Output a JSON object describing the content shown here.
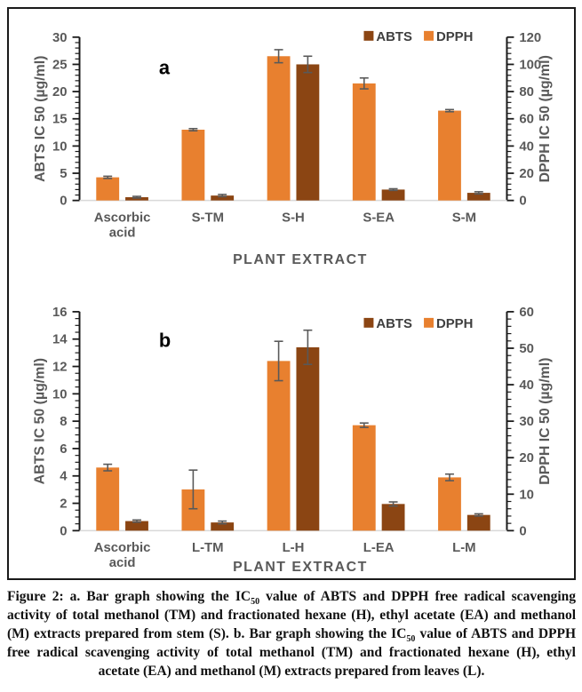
{
  "figure": {
    "caption_segments": [
      "Figure 2: a. Bar graph showing the IC",
      "50",
      " value of ABTS and DPPH free radical scavenging activity of total methanol (TM) and fractionated hexane (H), ethyl acetate (EA) and methanol (M) extracts prepared from stem (S). b. Bar graph showing the IC",
      "50",
      " value of ABTS and DPPH free radical scavenging activity of total methanol (TM) and fractionated hexane (H), ethyl acetate (EA) and methanol (M) extracts prepared from leaves (L)."
    ]
  },
  "colors": {
    "abts": "#8B4513",
    "dpph": "#E8802F",
    "axis_text": "#595959",
    "legend_text": "#3F3F3F",
    "axis_line": "#1a1a1a",
    "baseline": "#D9D9D9",
    "error_bar": "#595959",
    "panel_letter": "#000000"
  },
  "chart_data": [
    {
      "id": "a",
      "type": "bar",
      "panel_label": "a",
      "categories": [
        "Ascorbic\nacid",
        "S-TM",
        "S-H",
        "S-EA",
        "S-M"
      ],
      "xlabel": "PLANT EXTRACT",
      "axes": {
        "left": {
          "label": "ABTS IC 50 (µg/ml)",
          "min": 0,
          "max": 30,
          "major": 5,
          "minor": 1,
          "ticks": [
            0,
            5,
            10,
            15,
            20,
            25,
            30
          ]
        },
        "right": {
          "label": "DPPH IC 50 (µg/ml)",
          "min": 0,
          "max": 120,
          "major": 20,
          "minor": 4,
          "ticks": [
            0,
            20,
            40,
            60,
            80,
            100,
            120
          ]
        }
      },
      "legend": {
        "position": "top-right",
        "order": [
          "ABTS",
          "DPPH"
        ]
      },
      "series": [
        {
          "name": "DPPH",
          "axis": "right",
          "color_key": "dpph",
          "values": [
            17,
            52,
            106,
            86,
            66
          ],
          "errors": [
            0.8,
            0.8,
            4.8,
            4,
            0.8
          ]
        },
        {
          "name": "ABTS",
          "axis": "left",
          "color_key": "abts",
          "values": [
            0.6,
            0.9,
            25,
            2,
            1.4
          ],
          "errors": [
            0.15,
            0.2,
            1.5,
            0.15,
            0.2
          ]
        }
      ]
    },
    {
      "id": "b",
      "type": "bar",
      "panel_label": "b",
      "categories": [
        "Ascorbic\nacid",
        "L-TM",
        "L-H",
        "L-EA",
        "L-M"
      ],
      "xlabel": "PLANT EXTRACT",
      "axes": {
        "left": {
          "label": "ABTS IC 50 (µg/ml)",
          "min": 0,
          "max": 16,
          "major": 2,
          "minor": 0.5,
          "ticks": [
            0,
            2,
            4,
            6,
            8,
            10,
            12,
            14,
            16
          ]
        },
        "right": {
          "label": "DPPH IC 50 (µg/ml)",
          "min": 0,
          "max": 60,
          "major": 10,
          "minor": 2,
          "ticks": [
            0,
            10,
            20,
            30,
            40,
            50,
            60
          ]
        }
      },
      "legend": {
        "position": "top-right",
        "order": [
          "ABTS",
          "DPPH"
        ]
      },
      "series": [
        {
          "name": "DPPH",
          "axis": "right",
          "color_key": "dpph",
          "values": [
            17.3,
            11.3,
            46.5,
            28.9,
            14.6
          ],
          "errors": [
            0.9,
            5.3,
            5.4,
            0.6,
            0.9
          ]
        },
        {
          "name": "ABTS",
          "axis": "left",
          "color_key": "abts",
          "values": [
            0.7,
            0.6,
            13.4,
            1.95,
            1.15
          ],
          "errors": [
            0.08,
            0.1,
            1.25,
            0.15,
            0.08
          ]
        }
      ]
    }
  ]
}
